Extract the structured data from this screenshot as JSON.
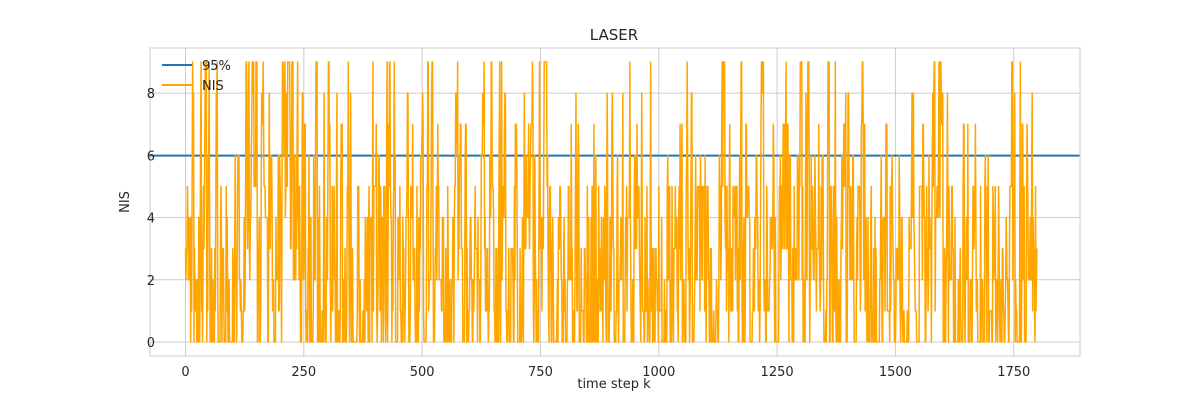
{
  "chart_data": {
    "type": "line",
    "title": "LASER",
    "xlabel": "time step k",
    "ylabel": "NIS",
    "xlim": [
      -75,
      1890
    ],
    "ylim": [
      -0.45,
      9.45
    ],
    "x_ticks": [
      0,
      250,
      500,
      750,
      1000,
      1250,
      1500,
      1750
    ],
    "y_ticks": [
      0,
      2,
      4,
      6,
      8
    ],
    "grid": true,
    "legend_position": "top-left",
    "series": [
      {
        "name": "95%",
        "kind": "hline",
        "y": 5.991,
        "color": "#1f77b4"
      },
      {
        "name": "NIS",
        "kind": "line",
        "color": "#ffa500",
        "x_start": 0,
        "x_step": 1,
        "count": 1800,
        "value_range": [
          0,
          9
        ],
        "value_precision": "integer",
        "values": []
      }
    ]
  }
}
